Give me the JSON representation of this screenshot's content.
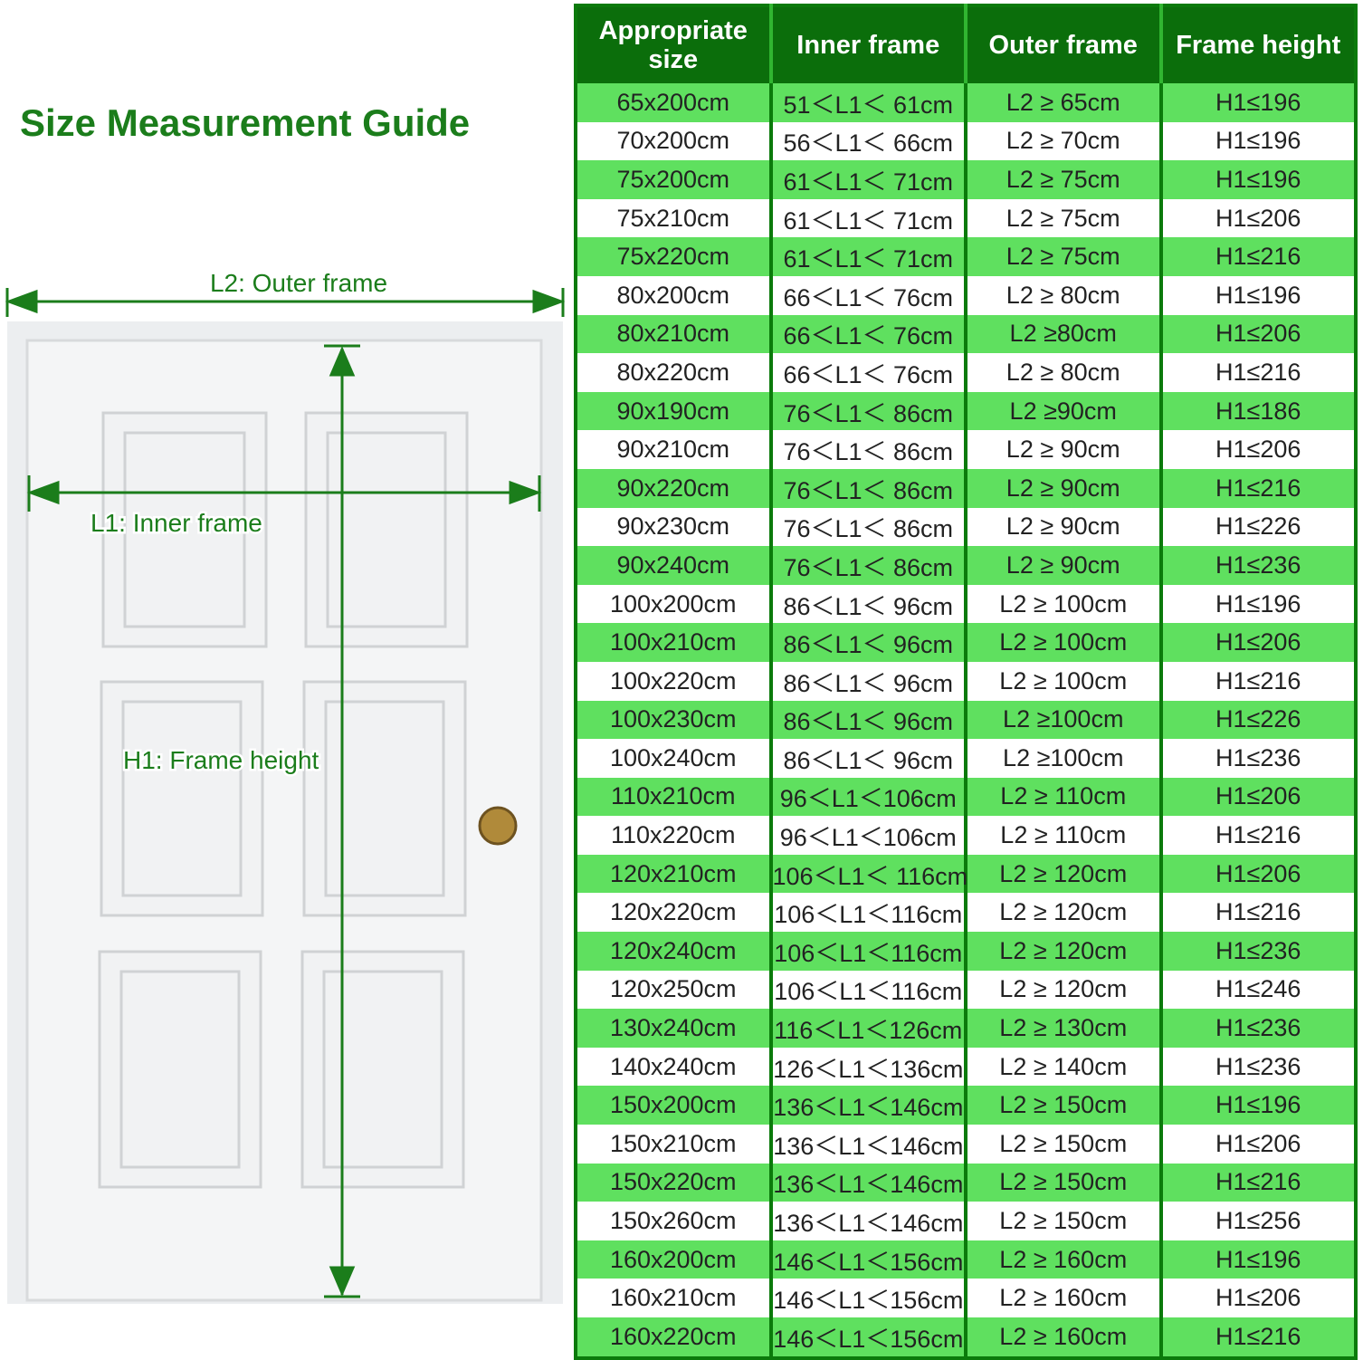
{
  "title": "Size Measurement Guide",
  "diagram": {
    "outer_label": "L2: Outer frame",
    "inner_label": "L1: Inner frame",
    "height_label": "H1: Frame height"
  },
  "table": {
    "header": [
      "Appropriate size",
      "Inner frame",
      "Outer frame",
      "Frame height"
    ],
    "rows": [
      [
        "65x200cm",
        "51＜L1＜ 61cm",
        "L2 ≥ 65cm",
        "H1≤196"
      ],
      [
        "70x200cm",
        "56＜L1＜ 66cm",
        "L2 ≥ 70cm",
        "H1≤196"
      ],
      [
        "75x200cm",
        "61＜L1＜ 71cm",
        "L2 ≥ 75cm",
        "H1≤196"
      ],
      [
        "75x210cm",
        "61＜L1＜ 71cm",
        "L2 ≥ 75cm",
        "H1≤206"
      ],
      [
        "75x220cm",
        "61＜L1＜ 71cm",
        "L2 ≥ 75cm",
        "H1≤216"
      ],
      [
        "80x200cm",
        "66＜L1＜ 76cm",
        "L2 ≥ 80cm",
        "H1≤196"
      ],
      [
        "80x210cm",
        "66＜L1＜ 76cm",
        "L2 ≥80cm",
        "H1≤206"
      ],
      [
        "80x220cm",
        "66＜L1＜ 76cm",
        "L2 ≥ 80cm",
        "H1≤216"
      ],
      [
        "90x190cm",
        "76＜L1＜ 86cm",
        "L2 ≥90cm",
        "H1≤186"
      ],
      [
        "90x210cm",
        "76＜L1＜ 86cm",
        "L2 ≥ 90cm",
        "H1≤206"
      ],
      [
        "90x220cm",
        "76＜L1＜ 86cm",
        "L2 ≥ 90cm",
        "H1≤216"
      ],
      [
        "90x230cm",
        "76＜L1＜ 86cm",
        "L2 ≥ 90cm",
        "H1≤226"
      ],
      [
        "90x240cm",
        "76＜L1＜ 86cm",
        "L2 ≥ 90cm",
        "H1≤236"
      ],
      [
        "100x200cm",
        "86＜L1＜ 96cm",
        "L2 ≥ 100cm",
        "H1≤196"
      ],
      [
        "100x210cm",
        "86＜L1＜ 96cm",
        "L2 ≥ 100cm",
        "H1≤206"
      ],
      [
        "100x220cm",
        "86＜L1＜ 96cm",
        "L2 ≥ 100cm",
        "H1≤216"
      ],
      [
        "100x230cm",
        "86＜L1＜ 96cm",
        "L2 ≥100cm",
        "H1≤226"
      ],
      [
        "100x240cm",
        "86＜L1＜ 96cm",
        "L2 ≥100cm",
        "H1≤236"
      ],
      [
        "110x210cm",
        "96＜L1＜106cm",
        "L2 ≥ 110cm",
        "H1≤206"
      ],
      [
        "110x220cm",
        "96＜L1＜106cm",
        "L2 ≥ 110cm",
        "H1≤216"
      ],
      [
        "120x210cm",
        "106＜L1＜ 116cm",
        "L2 ≥ 120cm",
        "H1≤206"
      ],
      [
        "120x220cm",
        "106＜L1＜116cm",
        "L2 ≥ 120cm",
        "H1≤216"
      ],
      [
        "120x240cm",
        "106＜L1＜116cm",
        "L2 ≥ 120cm",
        "H1≤236"
      ],
      [
        "120x250cm",
        "106＜L1＜116cm",
        "L2 ≥ 120cm",
        "H1≤246"
      ],
      [
        "130x240cm",
        "116＜L1＜126cm",
        "L2 ≥ 130cm",
        "H1≤236"
      ],
      [
        "140x240cm",
        "126＜L1＜136cm",
        "L2 ≥ 140cm",
        "H1≤236"
      ],
      [
        "150x200cm",
        "136＜L1＜146cm",
        "L2 ≥ 150cm",
        "H1≤196"
      ],
      [
        "150x210cm",
        "136＜L1＜146cm",
        "L2 ≥ 150cm",
        "H1≤206"
      ],
      [
        "150x220cm",
        "136＜L1＜146cm",
        "L2 ≥ 150cm",
        "H1≤216"
      ],
      [
        "150x260cm",
        "136＜L1＜146cm",
        "L2 ≥ 150cm",
        "H1≤256"
      ],
      [
        "160x200cm",
        "146＜L1＜156cm",
        "L2 ≥ 160cm",
        "H1≤196"
      ],
      [
        "160x210cm",
        "146＜L1＜156cm",
        "L2 ≥ 160cm",
        "H1≤206"
      ],
      [
        "160x220cm",
        "146＜L1＜156cm",
        "L2 ≥ 160cm",
        "H1≤216"
      ]
    ]
  }
}
